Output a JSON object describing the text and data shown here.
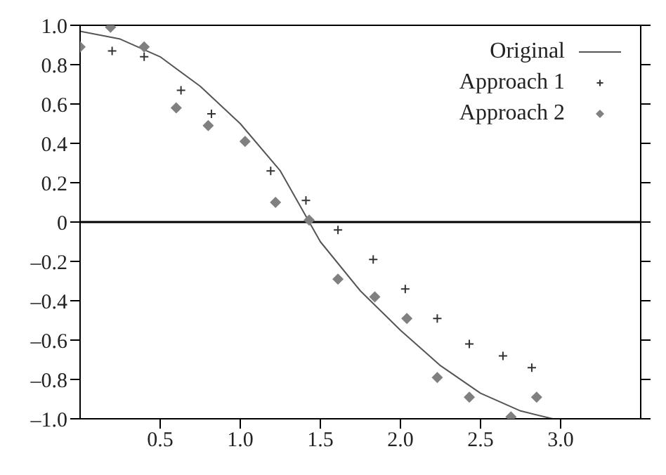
{
  "chart_data": {
    "type": "scatter",
    "xlim": [
      0,
      3.5
    ],
    "ylim": [
      -1,
      1
    ],
    "xticks": [
      0.5,
      {
        "value": 1,
        "label": "1.0"
      },
      1.5,
      {
        "value": 2,
        "label": "2.0"
      },
      2.5,
      {
        "value": 3,
        "label": "3.0"
      }
    ],
    "yticks": [
      {
        "value": -1,
        "label": "–1.0"
      },
      {
        "value": -0.8,
        "label": "–0.8"
      },
      {
        "value": -0.6,
        "label": "–0.6"
      },
      {
        "value": -0.4,
        "label": "–0.4"
      },
      {
        "value": -0.2,
        "label": "–0.2"
      },
      0,
      {
        "value": 0.2,
        "label": "0.2"
      },
      {
        "value": 0.4,
        "label": "0.4"
      },
      {
        "value": 0.6,
        "label": "0.6"
      },
      {
        "value": 0.8,
        "label": "0.8"
      },
      {
        "value": 1,
        "label": "1.0"
      }
    ],
    "grid": false,
    "legend": "top right",
    "ref_lines": [
      {
        "axis": "y",
        "value": 0,
        "color": "#000000"
      }
    ],
    "series": [
      {
        "name": "Original",
        "type": "line",
        "color": "#555555",
        "marker": "none",
        "line_style": "solid",
        "x": [
          0,
          0.25,
          0.5,
          0.75,
          1.0,
          1.25,
          1.5,
          1.75,
          2.0,
          2.25,
          2.5,
          2.75,
          2.95
        ],
        "values": [
          0.97,
          0.93,
          0.84,
          0.69,
          0.5,
          0.26,
          -0.1,
          -0.35,
          -0.55,
          -0.73,
          -0.87,
          -0.96,
          -1.0
        ]
      },
      {
        "name": "Approach 1",
        "type": "scatter",
        "color": "#333333",
        "marker": "cross",
        "x": [
          0.2,
          0.4,
          0.63,
          0.82,
          1.19,
          1.41,
          1.61,
          1.83,
          2.03,
          2.23,
          2.43,
          2.64,
          2.82
        ],
        "values": [
          0.87,
          0.84,
          0.67,
          0.55,
          0.26,
          0.11,
          -0.04,
          -0.19,
          -0.34,
          -0.49,
          -0.62,
          -0.68,
          -0.74
        ]
      },
      {
        "name": "Approach 2",
        "type": "scatter",
        "color": "#808080",
        "marker": "diamond",
        "x": [
          0.0,
          0.19,
          0.4,
          0.6,
          0.8,
          1.03,
          1.22,
          1.43,
          1.61,
          1.84,
          2.04,
          2.23,
          2.43,
          2.69,
          2.85
        ],
        "values": [
          0.89,
          0.99,
          0.89,
          0.58,
          0.49,
          0.41,
          0.1,
          0.01,
          -0.29,
          -0.38,
          -0.49,
          -0.79,
          -0.89,
          -0.99,
          -0.89
        ]
      }
    ]
  }
}
